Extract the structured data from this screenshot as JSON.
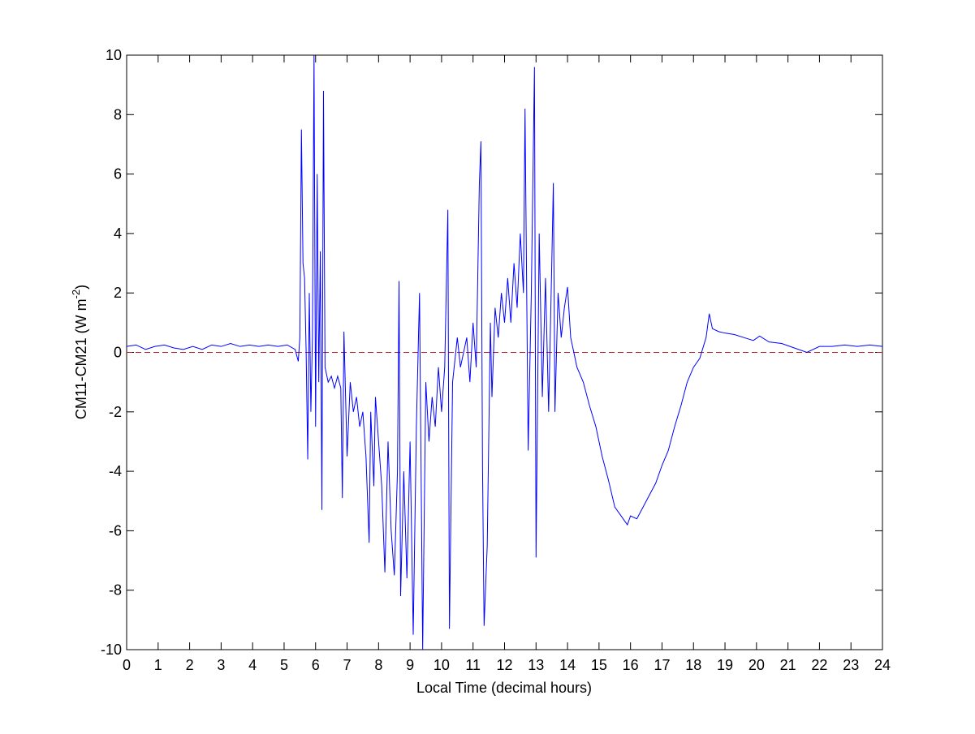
{
  "chart_data": {
    "type": "line",
    "xlabel": "Local Time (decimal hours)",
    "ylabel": {
      "text": "CM11-CM21 (W m",
      "sup": "-2",
      "end": ")"
    },
    "xlim": [
      0,
      24
    ],
    "xticks": [
      0,
      1,
      2,
      3,
      4,
      5,
      6,
      7,
      8,
      9,
      10,
      11,
      12,
      13,
      14,
      15,
      16,
      17,
      18,
      19,
      20,
      21,
      22,
      23,
      24
    ],
    "ylim": [
      -10,
      10
    ],
    "yticks": [
      -10,
      -8,
      -6,
      -4,
      -2,
      0,
      2,
      4,
      6,
      8,
      10
    ],
    "reference_line": {
      "value": 0,
      "color": "#b22222"
    },
    "series": [
      {
        "color": "#0000ff",
        "x": [
          0,
          0.3,
          0.6,
          0.9,
          1.2,
          1.5,
          1.8,
          2.1,
          2.4,
          2.7,
          3.0,
          3.3,
          3.6,
          3.9,
          4.2,
          4.5,
          4.8,
          5.1,
          5.35,
          5.45,
          5.5,
          5.55,
          5.6,
          5.65,
          5.7,
          5.75,
          5.8,
          5.85,
          5.9,
          5.95,
          6.0,
          6.05,
          6.1,
          6.15,
          6.2,
          6.25,
          6.3,
          6.4,
          6.5,
          6.6,
          6.7,
          6.8,
          6.85,
          6.9,
          7.0,
          7.1,
          7.2,
          7.3,
          7.4,
          7.5,
          7.6,
          7.7,
          7.75,
          7.85,
          7.9,
          8.0,
          8.1,
          8.2,
          8.3,
          8.4,
          8.5,
          8.6,
          8.65,
          8.7,
          8.8,
          8.9,
          9.0,
          9.1,
          9.2,
          9.3,
          9.4,
          9.5,
          9.6,
          9.7,
          9.8,
          9.9,
          10.0,
          10.1,
          10.2,
          10.25,
          10.35,
          10.5,
          10.6,
          10.7,
          10.8,
          10.9,
          11.0,
          11.1,
          11.2,
          11.25,
          11.3,
          11.35,
          11.45,
          11.55,
          11.6,
          11.7,
          11.8,
          11.9,
          12.0,
          12.1,
          12.2,
          12.3,
          12.4,
          12.5,
          12.6,
          12.65,
          12.75,
          12.85,
          12.95,
          13.0,
          13.1,
          13.2,
          13.3,
          13.4,
          13.5,
          13.55,
          13.6,
          13.7,
          13.8,
          13.9,
          14.0,
          14.1,
          14.2,
          14.3,
          14.5,
          14.7,
          14.9,
          15.1,
          15.3,
          15.5,
          15.7,
          15.9,
          16.0,
          16.2,
          16.4,
          16.6,
          16.8,
          17.0,
          17.2,
          17.4,
          17.6,
          17.8,
          18.0,
          18.2,
          18.4,
          18.5,
          18.6,
          18.8,
          19.0,
          19.3,
          19.6,
          19.9,
          20.1,
          20.4,
          20.8,
          21.2,
          21.6,
          22.0,
          22.4,
          22.8,
          23.2,
          23.6,
          24.0
        ],
        "values": [
          0.2,
          0.25,
          0.1,
          0.2,
          0.25,
          0.15,
          0.1,
          0.2,
          0.1,
          0.25,
          0.2,
          0.3,
          0.2,
          0.25,
          0.2,
          0.25,
          0.2,
          0.25,
          0.1,
          -0.3,
          0.5,
          7.5,
          3,
          2.5,
          0,
          -3.6,
          2.0,
          -2.0,
          0.5,
          10,
          -2.5,
          6,
          -1,
          3.4,
          -5.3,
          8.8,
          -0.5,
          -1,
          -0.8,
          -1.2,
          -0.8,
          -1.2,
          -4.9,
          0.7,
          -3.5,
          -1,
          -2,
          -1.5,
          -2.5,
          -2,
          -3.5,
          -6.4,
          -2,
          -4.5,
          -1.5,
          -3,
          -4.5,
          -7.4,
          -3,
          -6,
          -7.5,
          -4,
          2.4,
          -8.2,
          -4,
          -7.6,
          -3,
          -9.5,
          -2.5,
          2,
          -10,
          -1,
          -3,
          -1.5,
          -2.5,
          -0.5,
          -2,
          -0.5,
          4.8,
          -9.3,
          -1,
          0.5,
          -0.5,
          0,
          0.5,
          -1,
          1,
          -0.5,
          5.7,
          7.1,
          -3.8,
          -9.2,
          -6.5,
          1,
          -1.5,
          1.5,
          0.5,
          2,
          1,
          2.5,
          1,
          3,
          1.5,
          4,
          2,
          8.2,
          -3.3,
          2,
          9.6,
          -6.9,
          4,
          -1.5,
          2.5,
          -2,
          3,
          5.7,
          -2,
          2,
          0.5,
          1.5,
          2.2,
          0.5,
          0,
          -0.5,
          -1,
          -1.8,
          -2.5,
          -3.5,
          -4.3,
          -5.2,
          -5.5,
          -5.8,
          -5.5,
          -5.6,
          -5.2,
          -4.8,
          -4.4,
          -3.8,
          -3.3,
          -2.5,
          -1.8,
          -1.0,
          -0.5,
          -0.2,
          0.5,
          1.3,
          0.8,
          0.7,
          0.65,
          0.6,
          0.5,
          0.4,
          0.55,
          0.35,
          0.3,
          0.15,
          0.0,
          0.2,
          0.2,
          0.25,
          0.2,
          0.25,
          0.2
        ]
      }
    ]
  }
}
